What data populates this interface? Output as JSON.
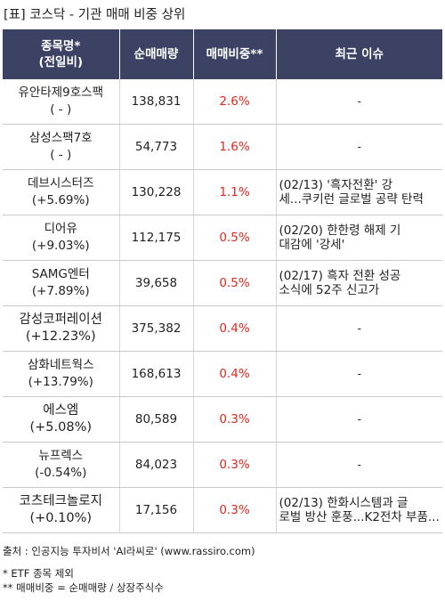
{
  "title": "[표] 코스닥 - 기관 매매 비중 상위",
  "table": {
    "headers": {
      "name_line1": "종목명*",
      "name_line2": "(전일비)",
      "volume": "순매매량",
      "ratio": "매매비중**",
      "issue": "최근 이슈"
    },
    "rows": [
      {
        "name": "유안타제9호스팩",
        "change": "( - )",
        "volume": "138,831",
        "ratio": "2.6%",
        "issue": [
          "-"
        ]
      },
      {
        "name": "삼성스팩7호",
        "change": "( - )",
        "volume": "54,773",
        "ratio": "1.6%",
        "issue": [
          "-"
        ]
      },
      {
        "name": "데브시스터즈",
        "change": "(+5.69%)",
        "volume": "130,228",
        "ratio": "1.1%",
        "issue": [
          "(02/13) '흑자전환' 강",
          "세...쿠키런 글로벌 공략 탄력"
        ]
      },
      {
        "name": "디어유",
        "change": "(+9.03%)",
        "volume": "112,175",
        "ratio": "0.5%",
        "issue": [
          "(02/20) 한한령 해제 기",
          "대감에 '강세'"
        ]
      },
      {
        "name": "SAMG엔터",
        "change": "(+7.89%)",
        "volume": "39,658",
        "ratio": "0.5%",
        "issue": [
          "(02/17) 흑자 전환 성공",
          " 소식에 52주 신고가"
        ]
      },
      {
        "name": "감성코퍼레이션",
        "change": "(+12.23%)",
        "volume": "375,382",
        "ratio": "0.4%",
        "issue": [
          "-"
        ]
      },
      {
        "name": "삼화네트웍스",
        "change": "(+13.79%)",
        "volume": "168,613",
        "ratio": "0.4%",
        "issue": [
          "-"
        ]
      },
      {
        "name": "에스엠",
        "change": "(+5.08%)",
        "volume": "80,589",
        "ratio": "0.3%",
        "issue": [
          "-"
        ]
      },
      {
        "name": "뉴프렉스",
        "change": "(-0.54%)",
        "volume": "84,023",
        "ratio": "0.3%",
        "issue": [
          "-"
        ]
      },
      {
        "name": "코츠테크놀로지",
        "change": "(+0.10%)",
        "volume": "17,156",
        "ratio": "0.3%",
        "issue": [
          "(02/13) 한화시스템과 글",
          "로벌 방산 훈풍...K2전차 부품..."
        ]
      }
    ]
  },
  "footer": {
    "source": "출처 : 인공지능 투자비서 'AI라씨로' (www.rassiro.com)",
    "note1": "* ETF 종목 제외",
    "note2": "** 매매비중 = 순매매량 / 상장주식수"
  },
  "colors": {
    "header_bg": "#3b4264",
    "ratio_text": "#e0281e"
  }
}
